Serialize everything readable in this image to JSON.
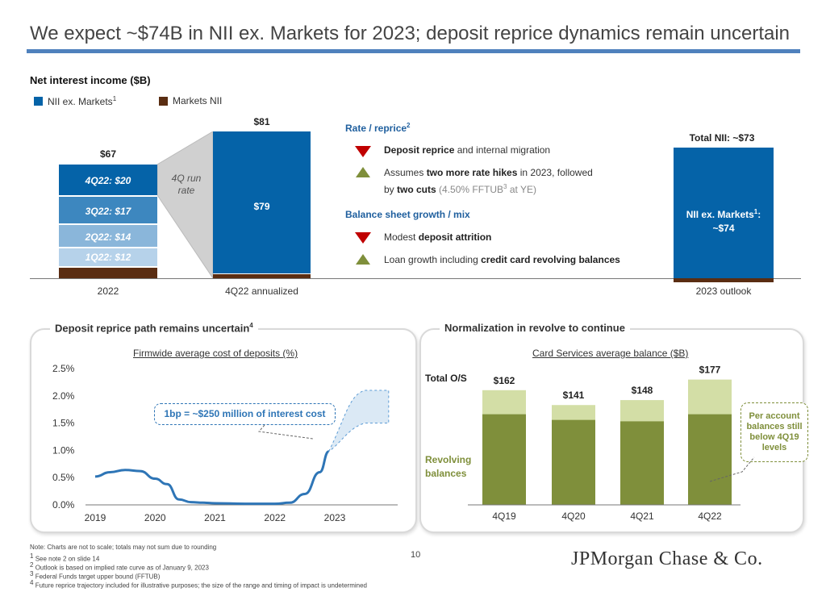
{
  "slide": {
    "title": "We expect ~$74B in NII ex. Markets for 2023; deposit reprice dynamics remain uncertain",
    "page_number": "10",
    "logo_text": "JPMorgan Chase & Co.",
    "colors": {
      "blue": "#0563a8",
      "brown": "#5a2d12",
      "olive": "#7f8f3b",
      "olive_light": "#d3dea6",
      "red": "#c00000",
      "accent_rule": "#4f81bd"
    }
  },
  "nii": {
    "header": "Net interest income ($B)",
    "legend": [
      {
        "label": "NII ex. Markets",
        "sup": "1",
        "color": "#0563a8"
      },
      {
        "label": "Markets NII",
        "sup": "",
        "color": "#5a2d12"
      }
    ],
    "bar_2022": {
      "total": "$67",
      "category": "2022",
      "segments": [
        {
          "label": "4Q22: $20",
          "value": 20
        },
        {
          "label": "3Q22: $17",
          "value": 17
        },
        {
          "label": "2Q22: $14",
          "value": 14
        },
        {
          "label": "1Q22: $12",
          "value": 12
        }
      ]
    },
    "run_rate_label": "4Q run rate",
    "bar_annualized": {
      "total": "$81",
      "inner": "$79",
      "category": "4Q22 annualized"
    },
    "bar_outlook": {
      "total": "Total NII: ~$73",
      "inner_line1": "NII ex. Markets",
      "inner_sup": "1",
      "inner_line2": "~$74",
      "category": "2023 outlook"
    },
    "drivers": {
      "rate_header": "Rate / reprice",
      "rate_sup": "2",
      "rate_items": [
        {
          "bold": "Deposit reprice",
          "rest": " and internal migration",
          "dir": "down"
        },
        {
          "pre": "Assumes ",
          "bold": "two more rate hikes",
          "rest": " in 2023, followed",
          "line2_pre": "by ",
          "line2_bold": "two cuts",
          "line2_gray": " (4.50% FFTUB",
          "line2_sup": "3",
          "line2_gray_end": " at YE)",
          "dir": "up"
        }
      ],
      "balance_header": "Balance sheet growth / mix",
      "balance_items": [
        {
          "pre": "Modest ",
          "bold": "deposit attrition",
          "dir": "down"
        },
        {
          "pre": "Loan growth including ",
          "bold": "credit card revolving balances",
          "dir": "up"
        }
      ]
    }
  },
  "deposit_panel": {
    "title": "Deposit reprice path remains uncertain",
    "title_sup": "4",
    "subtitle": "Firmwide average cost of deposits (%)",
    "callout": "1bp = ~$250 million of interest cost"
  },
  "revolve_panel": {
    "title": "Normalization in revolve to continue",
    "subtitle": "Card Services average balance ($B)",
    "total_label": "Total O/S",
    "revolving_label": "Revolving balances",
    "callout": "Per account balances still below 4Q19 levels"
  },
  "chart_data": [
    {
      "type": "line",
      "title": "Firmwide average cost of deposits (%)",
      "x": [
        2019.0,
        2019.25,
        2019.5,
        2019.75,
        2020.0,
        2020.2,
        2020.4,
        2020.6,
        2020.8,
        2021.0,
        2021.5,
        2022.0,
        2022.25,
        2022.5,
        2022.75,
        2022.9
      ],
      "series": [
        {
          "name": "Cost of deposits",
          "values": [
            0.52,
            0.6,
            0.64,
            0.62,
            0.48,
            0.38,
            0.1,
            0.05,
            0.04,
            0.03,
            0.02,
            0.02,
            0.04,
            0.2,
            0.6,
            0.98
          ]
        }
      ],
      "projection_range": {
        "x_start": 2022.9,
        "x_end": 2023.9,
        "low_end": 1.5,
        "high_end": 2.1
      },
      "ylim": [
        0,
        2.5
      ],
      "yticks": [
        "0.0%",
        "0.5%",
        "1.0%",
        "1.5%",
        "2.0%",
        "2.5%"
      ],
      "xticks": [
        "2019",
        "2020",
        "2021",
        "2022",
        "2023"
      ],
      "xlabel": "",
      "ylabel": ""
    },
    {
      "type": "bar",
      "title": "Card Services average balance ($B)",
      "categories": [
        "4Q19",
        "4Q20",
        "4Q21",
        "4Q22"
      ],
      "series": [
        {
          "name": "Revolving balances",
          "values": [
            128,
            120,
            118,
            128
          ]
        },
        {
          "name": "Total O/S",
          "values": [
            162,
            141,
            148,
            177
          ]
        }
      ],
      "data_labels": [
        "$162",
        "$141",
        "$148",
        "$177"
      ],
      "ylim": [
        0,
        180
      ]
    },
    {
      "type": "bar",
      "title": "Net interest income ($B)",
      "categories": [
        "2022",
        "4Q22 annualized",
        "2023 outlook"
      ],
      "series": [
        {
          "name": "NII ex. Markets",
          "values": [
            63,
            79,
            74
          ]
        },
        {
          "name": "Markets NII",
          "values": [
            4,
            2,
            -1
          ]
        }
      ],
      "totals": [
        "$67",
        "$81",
        "Total NII: ~$73"
      ]
    }
  ],
  "footnotes": [
    "Note: Charts are not to scale; totals may not sum due to rounding",
    "See note 2 on slide 14",
    "Outlook is based on implied rate curve as of January 9, 2023",
    "Federal Funds target upper bound (FFTUB)",
    "Future reprice trajectory included for illustrative purposes; the size of the range and timing of impact is undetermined"
  ]
}
